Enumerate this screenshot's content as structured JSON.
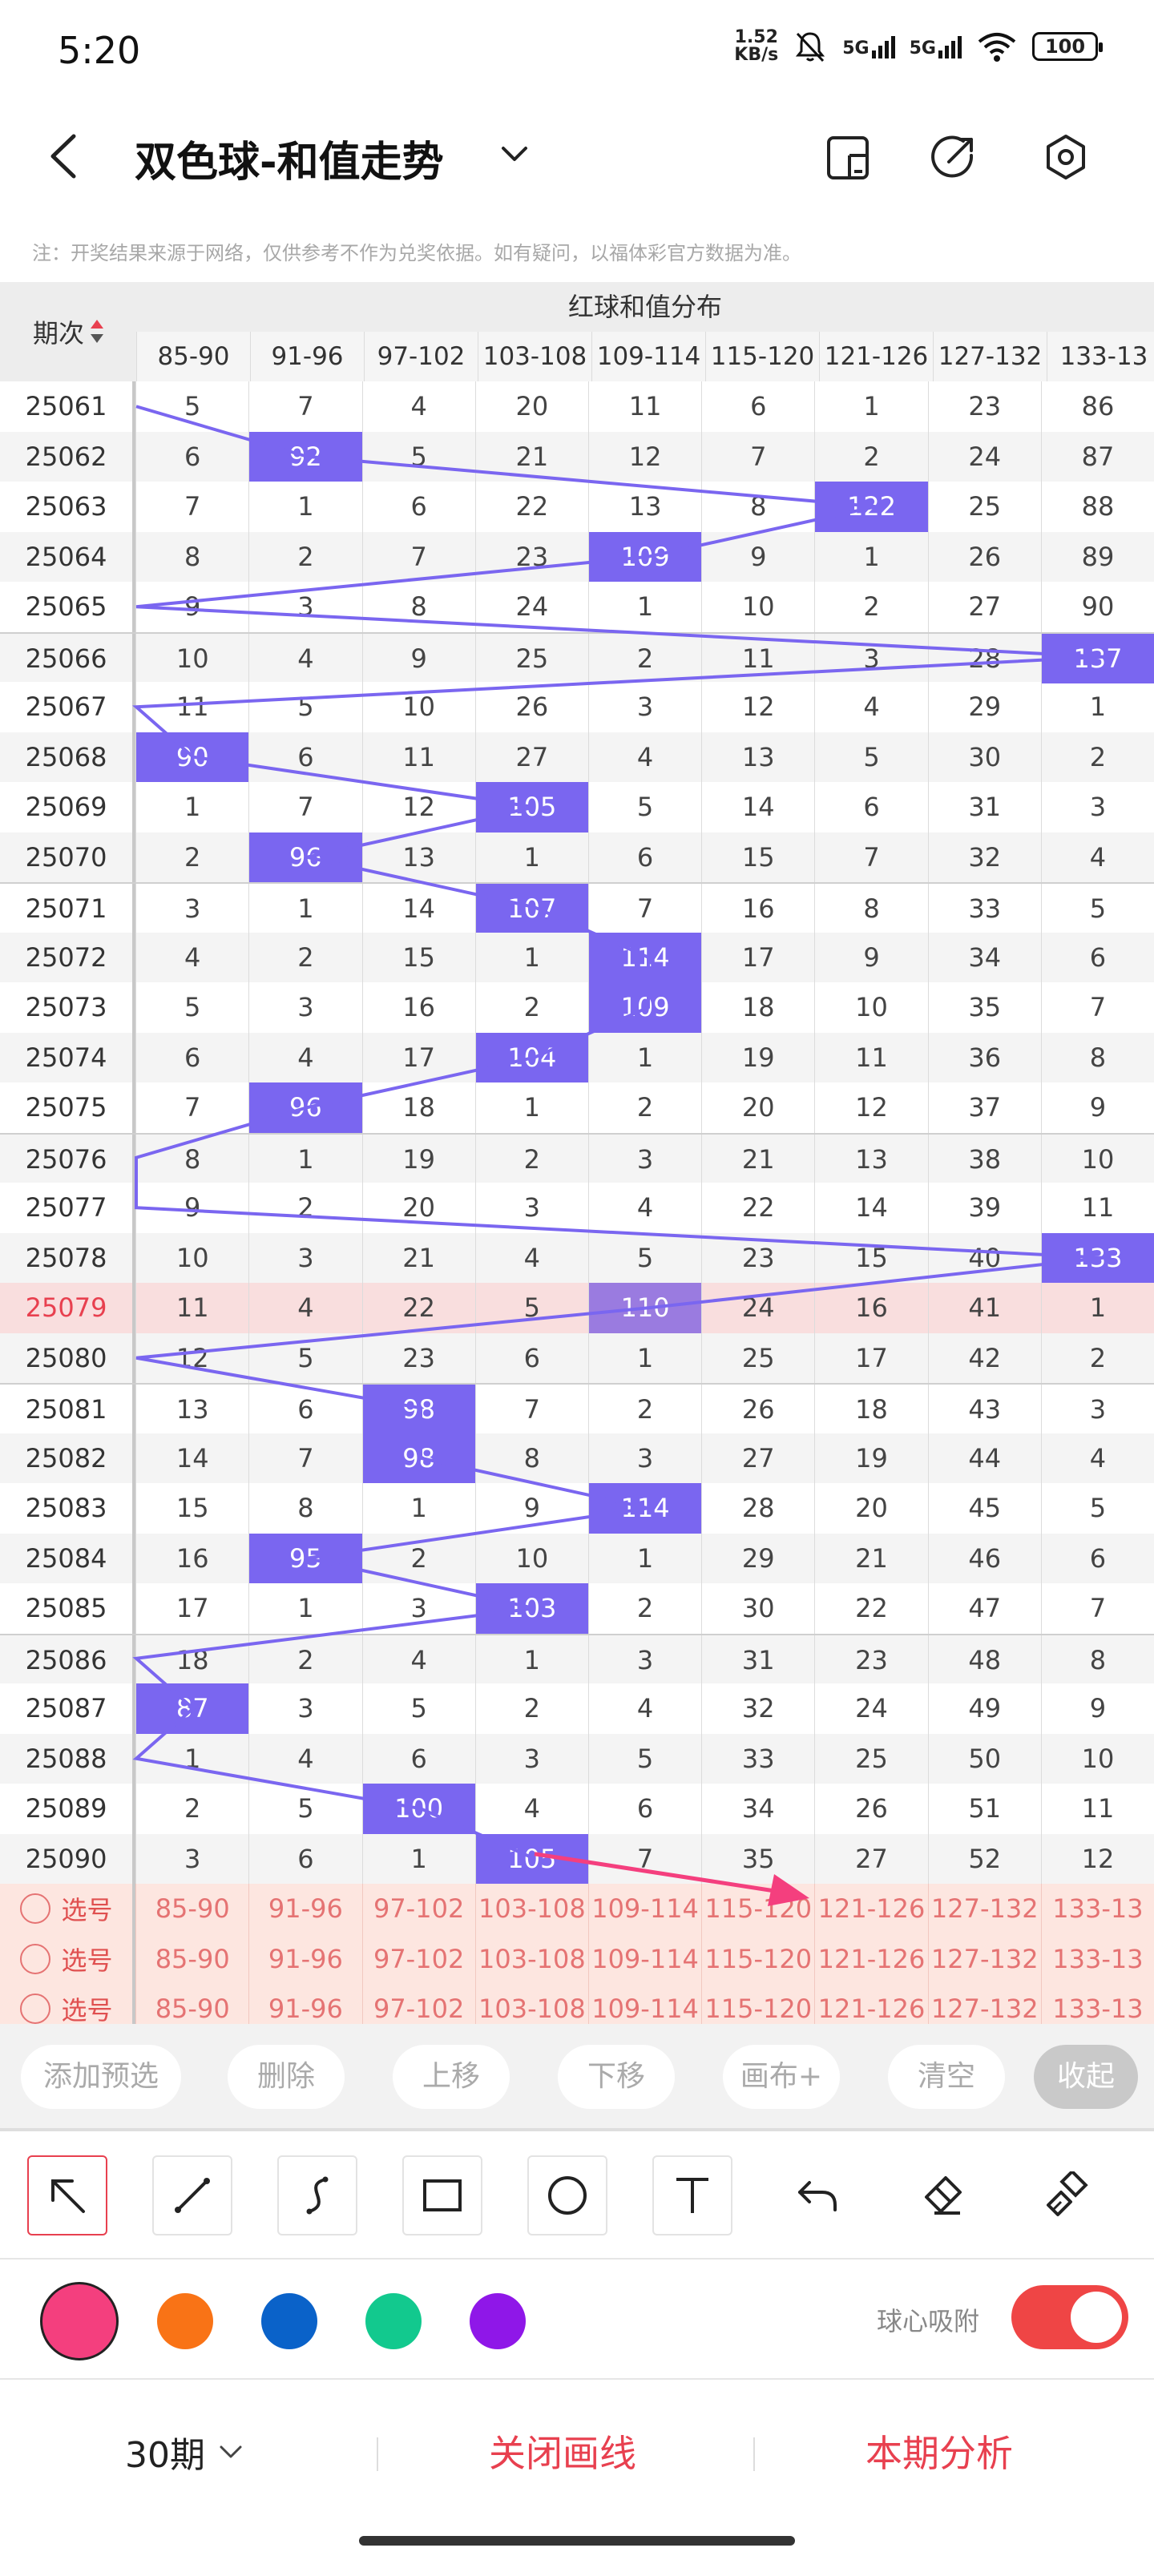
{
  "status_bar": {
    "time": "5:20",
    "net_speed_value": "1.52",
    "net_speed_unit": "KB/s",
    "sim1": "5G",
    "sim2": "5G",
    "battery": "100"
  },
  "header": {
    "title": "双色球-和值走势",
    "icons": [
      "back-icon",
      "chevron-down-icon",
      "phone-screen-icon",
      "share-icon",
      "settings-icon"
    ]
  },
  "note": "注：开奖结果来源于网络，仅供参考不作为兑奖依据。如有疑问，以福体彩官方数据为准。",
  "table": {
    "period_header": "期次",
    "group_header": "红球和值分布",
    "columns": [
      "85-90",
      "91-96",
      "97-102",
      "103-108",
      "109-114",
      "115-120",
      "121-126",
      "127-132",
      "133-13"
    ],
    "highlight_period": "25079",
    "rows": [
      {
        "period": "25061",
        "cells": [
          "5",
          "7",
          "4",
          "20",
          "11",
          "6",
          "1",
          "23",
          "86"
        ],
        "hit": -1
      },
      {
        "period": "25062",
        "cells": [
          "6",
          "92",
          "5",
          "21",
          "12",
          "7",
          "2",
          "24",
          "87"
        ],
        "hit": 1
      },
      {
        "period": "25063",
        "cells": [
          "7",
          "1",
          "6",
          "22",
          "13",
          "8",
          "122",
          "25",
          "88"
        ],
        "hit": 6
      },
      {
        "period": "25064",
        "cells": [
          "8",
          "2",
          "7",
          "23",
          "109",
          "9",
          "1",
          "26",
          "89"
        ],
        "hit": 4
      },
      {
        "period": "25065",
        "cells": [
          "9",
          "3",
          "8",
          "24",
          "1",
          "10",
          "2",
          "27",
          "90"
        ],
        "hit": -1
      },
      {
        "period": "25066",
        "cells": [
          "10",
          "4",
          "9",
          "25",
          "2",
          "11",
          "3",
          "28",
          "137"
        ],
        "hit": 8
      },
      {
        "period": "25067",
        "cells": [
          "11",
          "5",
          "10",
          "26",
          "3",
          "12",
          "4",
          "29",
          "1"
        ],
        "hit": -1
      },
      {
        "period": "25068",
        "cells": [
          "90",
          "6",
          "11",
          "27",
          "4",
          "13",
          "5",
          "30",
          "2"
        ],
        "hit": 0
      },
      {
        "period": "25069",
        "cells": [
          "1",
          "7",
          "12",
          "105",
          "5",
          "14",
          "6",
          "31",
          "3"
        ],
        "hit": 3
      },
      {
        "period": "25070",
        "cells": [
          "2",
          "96",
          "13",
          "1",
          "6",
          "15",
          "7",
          "32",
          "4"
        ],
        "hit": 1
      },
      {
        "period": "25071",
        "cells": [
          "3",
          "1",
          "14",
          "107",
          "7",
          "16",
          "8",
          "33",
          "5"
        ],
        "hit": 3
      },
      {
        "period": "25072",
        "cells": [
          "4",
          "2",
          "15",
          "1",
          "114",
          "17",
          "9",
          "34",
          "6"
        ],
        "hit": 4
      },
      {
        "period": "25073",
        "cells": [
          "5",
          "3",
          "16",
          "2",
          "109",
          "18",
          "10",
          "35",
          "7"
        ],
        "hit": 4
      },
      {
        "period": "25074",
        "cells": [
          "6",
          "4",
          "17",
          "104",
          "1",
          "19",
          "11",
          "36",
          "8"
        ],
        "hit": 3
      },
      {
        "period": "25075",
        "cells": [
          "7",
          "96",
          "18",
          "1",
          "2",
          "20",
          "12",
          "37",
          "9"
        ],
        "hit": 1
      },
      {
        "period": "25076",
        "cells": [
          "8",
          "1",
          "19",
          "2",
          "3",
          "21",
          "13",
          "38",
          "10"
        ],
        "hit": -1
      },
      {
        "period": "25077",
        "cells": [
          "9",
          "2",
          "20",
          "3",
          "4",
          "22",
          "14",
          "39",
          "11"
        ],
        "hit": -1
      },
      {
        "period": "25078",
        "cells": [
          "10",
          "3",
          "21",
          "4",
          "5",
          "23",
          "15",
          "40",
          "133"
        ],
        "hit": 8
      },
      {
        "period": "25079",
        "cells": [
          "11",
          "4",
          "22",
          "5",
          "110",
          "24",
          "16",
          "41",
          "1"
        ],
        "hit": 4
      },
      {
        "period": "25080",
        "cells": [
          "12",
          "5",
          "23",
          "6",
          "1",
          "25",
          "17",
          "42",
          "2"
        ],
        "hit": -1
      },
      {
        "period": "25081",
        "cells": [
          "13",
          "6",
          "98",
          "7",
          "2",
          "26",
          "18",
          "43",
          "3"
        ],
        "hit": 2
      },
      {
        "period": "25082",
        "cells": [
          "14",
          "7",
          "98",
          "8",
          "3",
          "27",
          "19",
          "44",
          "4"
        ],
        "hit": 2
      },
      {
        "period": "25083",
        "cells": [
          "15",
          "8",
          "1",
          "9",
          "114",
          "28",
          "20",
          "45",
          "5"
        ],
        "hit": 4
      },
      {
        "period": "25084",
        "cells": [
          "16",
          "95",
          "2",
          "10",
          "1",
          "29",
          "21",
          "46",
          "6"
        ],
        "hit": 1
      },
      {
        "period": "25085",
        "cells": [
          "17",
          "1",
          "3",
          "103",
          "2",
          "30",
          "22",
          "47",
          "7"
        ],
        "hit": 3
      },
      {
        "period": "25086",
        "cells": [
          "18",
          "2",
          "4",
          "1",
          "3",
          "31",
          "23",
          "48",
          "8"
        ],
        "hit": -1
      },
      {
        "period": "25087",
        "cells": [
          "87",
          "3",
          "5",
          "2",
          "4",
          "32",
          "24",
          "49",
          "9"
        ],
        "hit": 0
      },
      {
        "period": "25088",
        "cells": [
          "1",
          "4",
          "6",
          "3",
          "5",
          "33",
          "25",
          "50",
          "10"
        ],
        "hit": -1
      },
      {
        "period": "25089",
        "cells": [
          "2",
          "5",
          "100",
          "4",
          "6",
          "34",
          "26",
          "51",
          "11"
        ],
        "hit": 2
      },
      {
        "period": "25090",
        "cells": [
          "3",
          "6",
          "1",
          "105",
          "7",
          "35",
          "27",
          "52",
          "12"
        ],
        "hit": 3
      }
    ],
    "pick_rows": [
      {
        "label": "选号"
      },
      {
        "label": "选号"
      },
      {
        "label": "选号"
      }
    ]
  },
  "actions": [
    "添加预选",
    "删除",
    "上移",
    "下移",
    "画布+",
    "清空",
    "收起"
  ],
  "tools": [
    "arrow-tool-icon",
    "line-tool-icon",
    "curve-tool-icon",
    "rectangle-tool-icon",
    "circle-tool-icon",
    "text-tool-icon",
    "undo-icon",
    "eraser-icon",
    "clear-brush-icon"
  ],
  "palette": {
    "colors": [
      "#f43f7e",
      "#f97316",
      "#0a62c9",
      "#12c98e",
      "#8f17e8"
    ],
    "selected": "#f43f7e",
    "trend_line": "#7a66f0",
    "hit_cell": "#7a66f0"
  },
  "snap": {
    "label": "球心吸附",
    "enabled": true
  },
  "bottom": {
    "period_select": "30期",
    "close_lines": "关闭画线",
    "analysis": "本期分析"
  }
}
